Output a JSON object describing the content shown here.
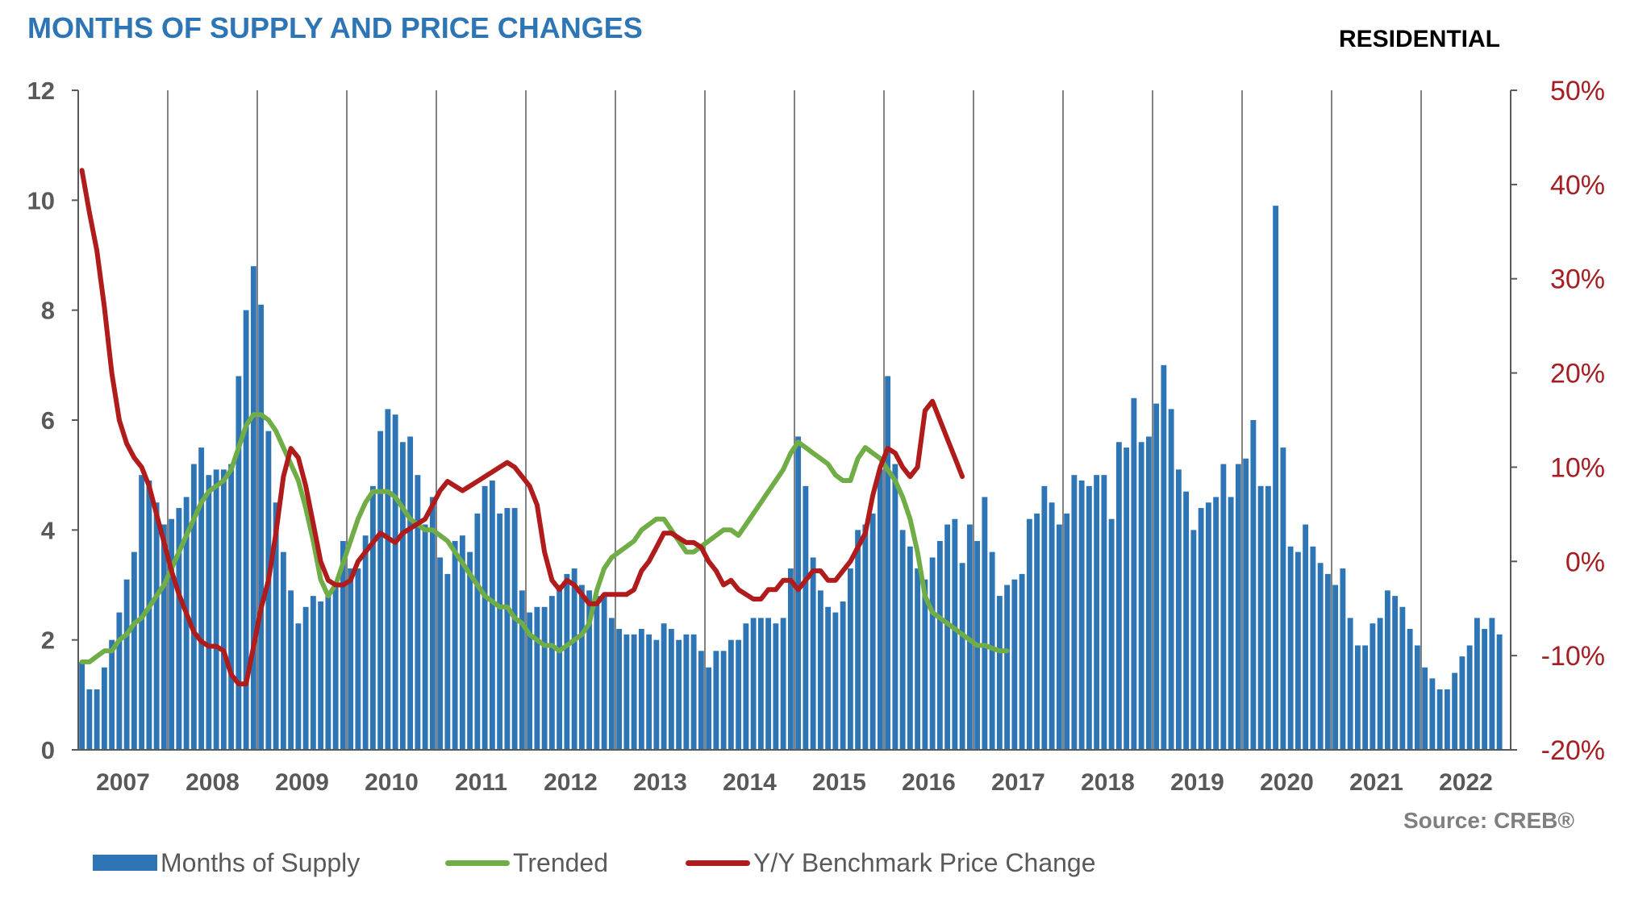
{
  "title": "MONTHS OF SUPPLY AND PRICE CHANGES",
  "subtitle": "RESIDENTIAL",
  "source": "Source: CREB®",
  "colors": {
    "title": "#2E75B6",
    "bars": "#2E75B6",
    "trended": "#70AD47",
    "price": "#B01B1B",
    "right_axis": "#A51E22",
    "left_axis": "#595959"
  },
  "legend": [
    {
      "label": "Months of Supply",
      "type": "bar",
      "color": "#2E75B6"
    },
    {
      "label": "Trended",
      "type": "line",
      "color": "#70AD47"
    },
    {
      "label": "Y/Y Benchmark Price Change",
      "type": "line",
      "color": "#B01B1B"
    }
  ],
  "chart_data": {
    "type": "bar+line",
    "x_axis": {
      "categories": [
        "2007",
        "2008",
        "2009",
        "2010",
        "2011",
        "2012",
        "2013",
        "2014",
        "2015",
        "2016",
        "2017",
        "2018",
        "2019",
        "2020",
        "2021",
        "2022"
      ],
      "months_per_category": 12
    },
    "y_left": {
      "min": 0,
      "max": 12,
      "ticks": [
        "0",
        "2",
        "4",
        "6",
        "8",
        "10",
        "12"
      ]
    },
    "y_right": {
      "min": -20,
      "max": 50,
      "ticks": [
        "-20%",
        "-10%",
        "0%",
        "10%",
        "20%",
        "30%",
        "40%",
        "50%"
      ]
    },
    "grid": "vertical lines at year boundaries",
    "legend_position": "bottom",
    "series": [
      {
        "name": "Months of Supply",
        "type": "bar",
        "axis": "left",
        "values": [
          1.6,
          1.1,
          1.1,
          1.5,
          2.0,
          2.5,
          3.1,
          3.6,
          5.0,
          4.9,
          4.5,
          4.1,
          4.2,
          4.4,
          4.6,
          5.2,
          5.5,
          5.0,
          5.1,
          5.1,
          5.2,
          6.8,
          8.0,
          8.8,
          8.1,
          5.8,
          4.5,
          3.6,
          2.9,
          2.3,
          2.6,
          2.8,
          2.7,
          2.8,
          3.0,
          3.8,
          3.3,
          3.3,
          3.9,
          4.8,
          5.8,
          6.2,
          6.1,
          5.6,
          5.7,
          5.0,
          4.1,
          4.6,
          3.5,
          3.2,
          3.8,
          3.9,
          3.6,
          4.3,
          4.8,
          4.9,
          4.3,
          4.4,
          4.4,
          2.9,
          2.5,
          2.6,
          2.6,
          2.8,
          3.0,
          3.2,
          3.3,
          3.0,
          2.9,
          2.8,
          2.8,
          2.4,
          2.2,
          2.1,
          2.1,
          2.2,
          2.1,
          2.0,
          2.3,
          2.2,
          2.0,
          2.1,
          2.1,
          1.8,
          1.5,
          1.8,
          1.8,
          2.0,
          2.0,
          2.3,
          2.4,
          2.4,
          2.4,
          2.3,
          2.4,
          3.3,
          5.7,
          4.8,
          3.5,
          2.9,
          2.6,
          2.5,
          2.7,
          3.3,
          4.0,
          4.1,
          4.3,
          5.1,
          6.8,
          5.2,
          4.0,
          3.7,
          3.3,
          3.1,
          3.5,
          3.8,
          4.1,
          4.2,
          3.4,
          4.1,
          3.8,
          4.6,
          3.6,
          2.8,
          3.0,
          3.1,
          3.2,
          4.2,
          4.3,
          4.8,
          4.5,
          4.1,
          4.3,
          5.0,
          4.9,
          4.8,
          5.0,
          5.0,
          4.2,
          5.6,
          5.5,
          6.4,
          5.6,
          5.7,
          6.3,
          7.0,
          6.2,
          5.1,
          4.7,
          4.0,
          4.4,
          4.5,
          4.6,
          5.2,
          4.6,
          5.2,
          5.3,
          6.0,
          4.8,
          4.8,
          9.9,
          5.5,
          3.7,
          3.6,
          4.1,
          3.7,
          3.4,
          3.2,
          3.0,
          3.3,
          2.4,
          1.9,
          1.9,
          2.3,
          2.4,
          2.9,
          2.8,
          2.6,
          2.2,
          1.9,
          1.5,
          1.3,
          1.1,
          1.1,
          1.4,
          1.7,
          1.9,
          2.4,
          2.2,
          2.4,
          2.1
        ]
      },
      {
        "name": "Trended",
        "type": "line",
        "axis": "left",
        "values": [
          1.6,
          1.6,
          1.7,
          1.8,
          1.8,
          2.0,
          2.1,
          2.3,
          2.4,
          2.6,
          2.8,
          3.0,
          3.3,
          3.6,
          3.9,
          4.2,
          4.5,
          4.7,
          4.8,
          4.9,
          5.1,
          5.5,
          5.9,
          6.1,
          6.1,
          6.0,
          5.8,
          5.5,
          5.2,
          4.9,
          4.4,
          3.8,
          3.1,
          2.8,
          3.0,
          3.4,
          3.8,
          4.2,
          4.5,
          4.7,
          4.7,
          4.7,
          4.6,
          4.4,
          4.2,
          4.1,
          4.0,
          4.0,
          3.9,
          3.8,
          3.6,
          3.4,
          3.2,
          3.0,
          2.8,
          2.7,
          2.6,
          2.6,
          2.4,
          2.3,
          2.1,
          2.0,
          1.9,
          1.9,
          1.8,
          1.9,
          2.0,
          2.1,
          2.3,
          2.9,
          3.3,
          3.5,
          3.6,
          3.7,
          3.8,
          4.0,
          4.1,
          4.2,
          4.2,
          4.0,
          3.8,
          3.6,
          3.6,
          3.7,
          3.8,
          3.9,
          4.0,
          4.0,
          3.9,
          4.1,
          4.3,
          4.5,
          4.7,
          4.9,
          5.1,
          5.4,
          5.6,
          5.5,
          5.4,
          5.3,
          5.2,
          5.0,
          4.9,
          4.9,
          5.3,
          5.5,
          5.4,
          5.3,
          5.1,
          4.9,
          4.6,
          4.2,
          3.6,
          2.8,
          2.5,
          2.4,
          2.3,
          2.2,
          2.1,
          2.0,
          1.9,
          1.9,
          1.85,
          1.8,
          1.8
        ]
      },
      {
        "name": "Y/Y Benchmark Price Change",
        "type": "line",
        "axis": "right",
        "values": [
          41.5,
          37,
          33,
          27,
          20,
          15,
          12.5,
          11,
          10,
          8,
          5,
          2,
          -1,
          -3.5,
          -5.5,
          -7.5,
          -8.5,
          -9,
          -9,
          -9.5,
          -12,
          -13,
          -13,
          -9,
          -5,
          -2,
          3,
          9,
          12,
          11,
          8,
          4,
          0,
          -2,
          -2.5,
          -2.5,
          -2,
          0,
          1,
          2,
          3,
          2.5,
          2,
          3,
          3.5,
          4,
          4.5,
          6,
          7.5,
          8.5,
          8,
          7.5,
          8,
          8.5,
          9,
          9.5,
          10,
          10.5,
          10,
          9,
          8,
          6,
          1,
          -2,
          -3,
          -2,
          -2.5,
          -3.5,
          -4.5,
          -4.5,
          -3.5,
          -3.5,
          -3.5,
          -3.5,
          -3,
          -1,
          0,
          1.5,
          3,
          3,
          2.5,
          2,
          2,
          1.5,
          0,
          -1,
          -2.5,
          -2,
          -3,
          -3.5,
          -4,
          -4,
          -3,
          -3,
          -2,
          -2,
          -3,
          -2,
          -1,
          -1,
          -2,
          -2,
          -1,
          0,
          1.5,
          3,
          7,
          10,
          12,
          11.5,
          10,
          9,
          10,
          16,
          17,
          15,
          13,
          11,
          9
        ]
      }
    ]
  }
}
